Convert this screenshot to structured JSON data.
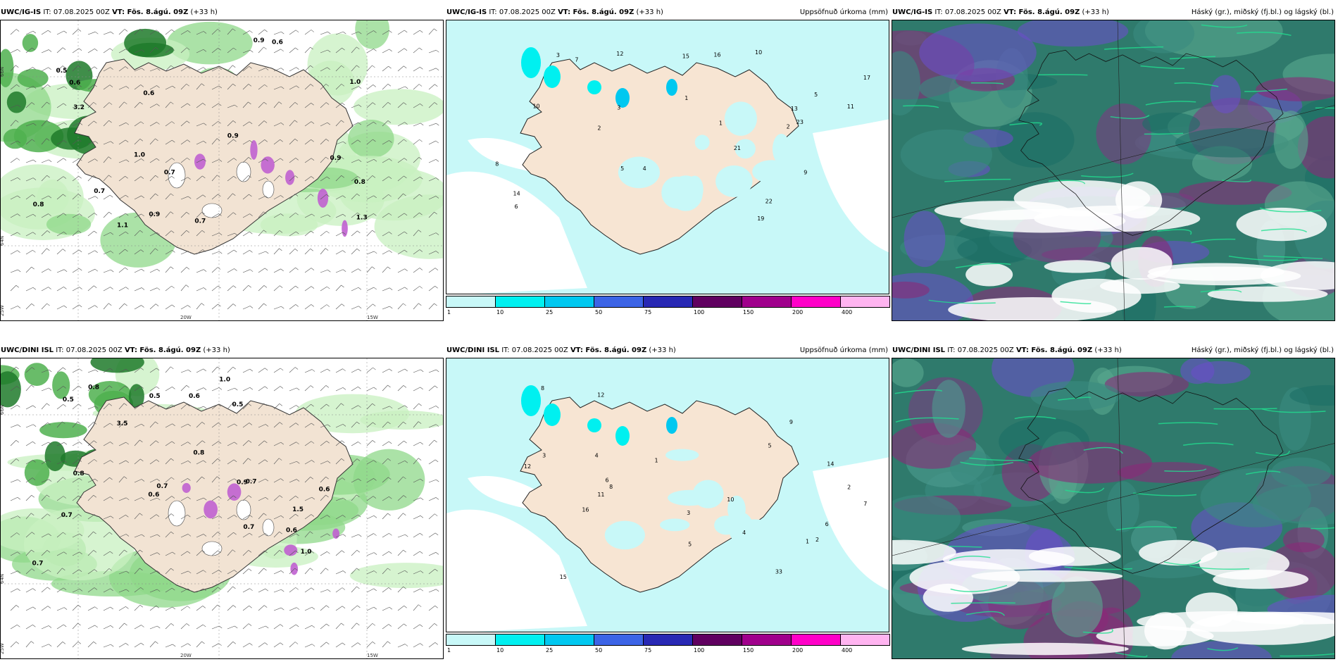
{
  "panels": {
    "p1": {
      "title_model": "UWC/IG-IS",
      "title_it": "IT: 07.08.2025 00Z",
      "title_vt": "VT: Fös. 8.ágú. 09Z",
      "title_lead": "(+33 h)",
      "title_right": ""
    },
    "p2": {
      "title_model": "UWC/IG-IS",
      "title_it": "IT: 07.08.2025 00Z",
      "title_vt": "VT: Fös. 8.ágú. 09Z",
      "title_lead": "(+33 h)",
      "title_right": "Uppsöfnuð úrkoma (mm)"
    },
    "p3": {
      "title_model": "UWC/IG-IS",
      "title_it": "IT: 07.08.2025 00Z",
      "title_vt": "VT: Fös. 8.ágú. 09Z",
      "title_lead": "(+33 h)",
      "title_right": "Háský (gr.), miðský (fj.bl.) og lágský (bl.)"
    },
    "p4": {
      "title_model": "UWC/DINI ISL",
      "title_it": "IT: 07.08.2025 00Z",
      "title_vt": "VT: Fös. 8.ágú. 09Z",
      "title_lead": "(+33 h)",
      "title_right": ""
    },
    "p5": {
      "title_model": "UWC/DINI ISL",
      "title_it": "IT: 07.08.2025 00Z",
      "title_vt": "VT: Fös. 8.ágú. 09Z",
      "title_lead": "(+33 h)",
      "title_right": "Uppsöfnuð úrkoma (mm)"
    },
    "p6": {
      "title_model": "UWC/DINI ISL",
      "title_it": "IT: 07.08.2025 00Z",
      "title_vt": "VT: Fös. 8.ágú. 09Z",
      "title_lead": "(+33 h)",
      "title_right": "Háský (gr.), miðský (fj.bl.) og lágský (bl.)"
    }
  },
  "axis_labels": {
    "lat66": "66N",
    "lat64": "64N",
    "lon25": "25W",
    "lon20": "20W",
    "lon15": "15W"
  },
  "colorbar": {
    "ticks": [
      "1",
      "10",
      "25",
      "50",
      "75",
      "100",
      "150",
      "200",
      "400"
    ],
    "colors": [
      "#c8f8f8",
      "#00f0f0",
      "#00c8f0",
      "#3c64e6",
      "#2828b4",
      "#600060",
      "#a0008c",
      "#ff00c8",
      "#ffb4f0"
    ]
  },
  "wind_labels_top": [
    "0.7",
    "0.6",
    "0.9",
    "3.2",
    "1.0",
    "0.5",
    "0.9",
    "0.8",
    "0.7",
    "1.1",
    "0.6",
    "0.9",
    "1.0",
    "0.7",
    "0.9",
    "0.6",
    "0.8",
    "1.3"
  ],
  "wind_labels_bottom": [
    "0.7",
    "1.5",
    "0.7",
    "0.6",
    "0.5",
    "0.8",
    "0.7",
    "0.6",
    "0.5",
    "0.7",
    "1.0",
    "0.8",
    "0.6",
    "0.5",
    "0.9",
    "0.7",
    "0.8",
    "0.6",
    "1.0",
    "3.5"
  ],
  "precip_labels_top": [
    "3",
    "4",
    "5",
    "9",
    "8",
    "11",
    "10",
    "12",
    "14",
    "19",
    "21",
    "22",
    "23",
    "7",
    "6",
    "2",
    "1",
    "16",
    "17",
    "13",
    "15",
    "10",
    "5",
    "3",
    "2",
    "1"
  ],
  "precip_labels_bottom": [
    "6",
    "5",
    "4",
    "12",
    "11",
    "15",
    "16",
    "33",
    "14",
    "10",
    "8",
    "7",
    "3",
    "2",
    "1",
    "12",
    "6",
    "9",
    "4",
    "5",
    "3",
    "2",
    "1",
    "8"
  ]
}
